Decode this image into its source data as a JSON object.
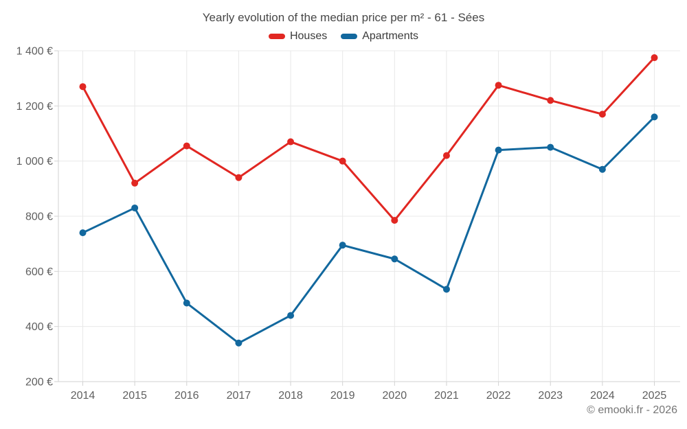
{
  "chart_data": {
    "type": "line",
    "title": "Yearly evolution of the median price per m² - 61 - Sées",
    "categories": [
      "2014",
      "2015",
      "2016",
      "2017",
      "2018",
      "2019",
      "2020",
      "2021",
      "2022",
      "2023",
      "2024",
      "2025"
    ],
    "series": [
      {
        "name": "Houses",
        "color": "#e12722",
        "values": [
          1270,
          920,
          1055,
          940,
          1070,
          1000,
          785,
          1020,
          1275,
          1220,
          1170,
          1375
        ]
      },
      {
        "name": "Apartments",
        "color": "#12689e",
        "values": [
          740,
          830,
          485,
          340,
          440,
          695,
          645,
          535,
          1040,
          1050,
          970,
          1160
        ]
      }
    ],
    "xlabel": "",
    "ylabel": "",
    "ylim": [
      200,
      1400
    ],
    "y_ticks": [
      {
        "value": 1400,
        "label": "1 400 €"
      },
      {
        "value": 1200,
        "label": "1 200 €"
      },
      {
        "value": 1000,
        "label": "1 000 €"
      },
      {
        "value": 800,
        "label": "800 €"
      },
      {
        "value": 600,
        "label": "600 €"
      },
      {
        "value": 400,
        "label": "400 €"
      },
      {
        "value": 200,
        "label": "200 €"
      }
    ],
    "grid": true,
    "legend_position": "top"
  },
  "footer": {
    "text": "© emooki.fr - 2026"
  }
}
